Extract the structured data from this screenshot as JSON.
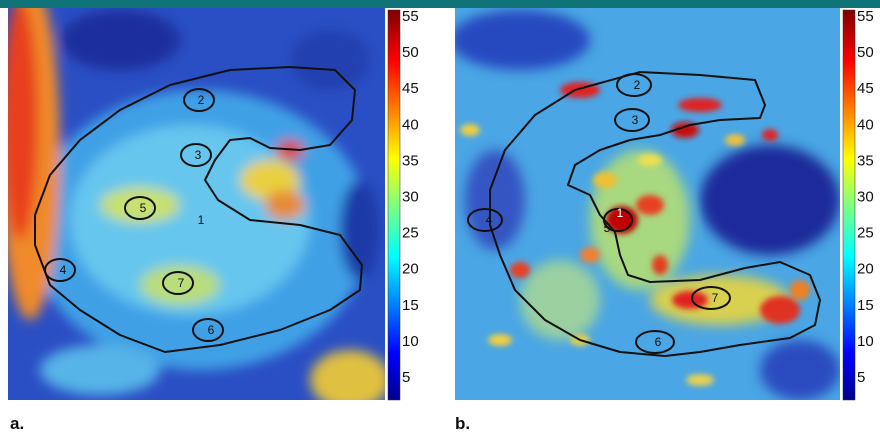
{
  "panels": [
    {
      "label": "a.",
      "colorbar_ticks": [
        55,
        50,
        45,
        40,
        35,
        30,
        25,
        20,
        15,
        10,
        5
      ],
      "roi_labels": [
        "1",
        "2",
        "3",
        "4",
        "5",
        "6",
        "7"
      ]
    },
    {
      "label": "b.",
      "colorbar_ticks": [
        55,
        50,
        45,
        40,
        35,
        30,
        25,
        20,
        15,
        10,
        5
      ],
      "roi_labels": [
        "1",
        "2",
        "3",
        "4",
        "5",
        "6",
        "7"
      ]
    }
  ]
}
